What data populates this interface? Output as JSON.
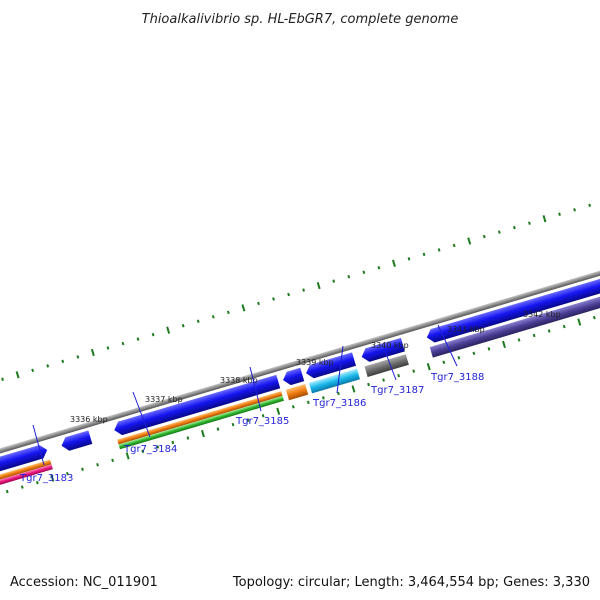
{
  "title": "Thioalkalivibrio sp. HL-EbGR7, complete genome",
  "footer": {
    "accession": "Accession: NC_011901",
    "summary": "Topology: circular; Length: 3,464,554 bp; Genes: 3,330"
  },
  "map": {
    "unit": "kbp",
    "colors": {
      "backbone": "#8c8c8c",
      "tick": "#1e7a1e",
      "gene_label": "#1f1fd6"
    },
    "scale_labels": [
      "3336 kbp",
      "3337 kbp",
      "3338 kbp",
      "3339 kbp",
      "3340 kbp",
      "3341 kbp",
      "3342 kbp"
    ],
    "genes": [
      {
        "locus": "Tgr7_3183",
        "strand": "+",
        "cds_color": "#1414e6",
        "tracks": [
          "#f07c12",
          "#e8187c"
        ]
      },
      {
        "locus": "Tgr7_3184",
        "strand": "-",
        "cds_color": "#1414e6",
        "tracks": []
      },
      {
        "locus": "Tgr7_3185",
        "strand": "-",
        "cds_color": "#1414e6",
        "tracks": [
          "#f07c12",
          "#2fb52f"
        ]
      },
      {
        "locus": "Tgr7_3186",
        "strand": "-",
        "cds_color": "#1414e6",
        "tracks": [
          "#f07c12"
        ]
      },
      {
        "locus": "Tgr7_3187",
        "strand": "-",
        "cds_color": "#1414e6",
        "tracks": [
          "#1ab8ea"
        ]
      },
      {
        "locus": "Tgr7_3188",
        "strand": "-",
        "cds_color": "#1414e6",
        "tracks": [
          "#707070"
        ]
      },
      {
        "locus": "",
        "strand": "-",
        "cds_color": "#1414e6",
        "tracks": [
          "#4a3f96"
        ]
      }
    ]
  }
}
